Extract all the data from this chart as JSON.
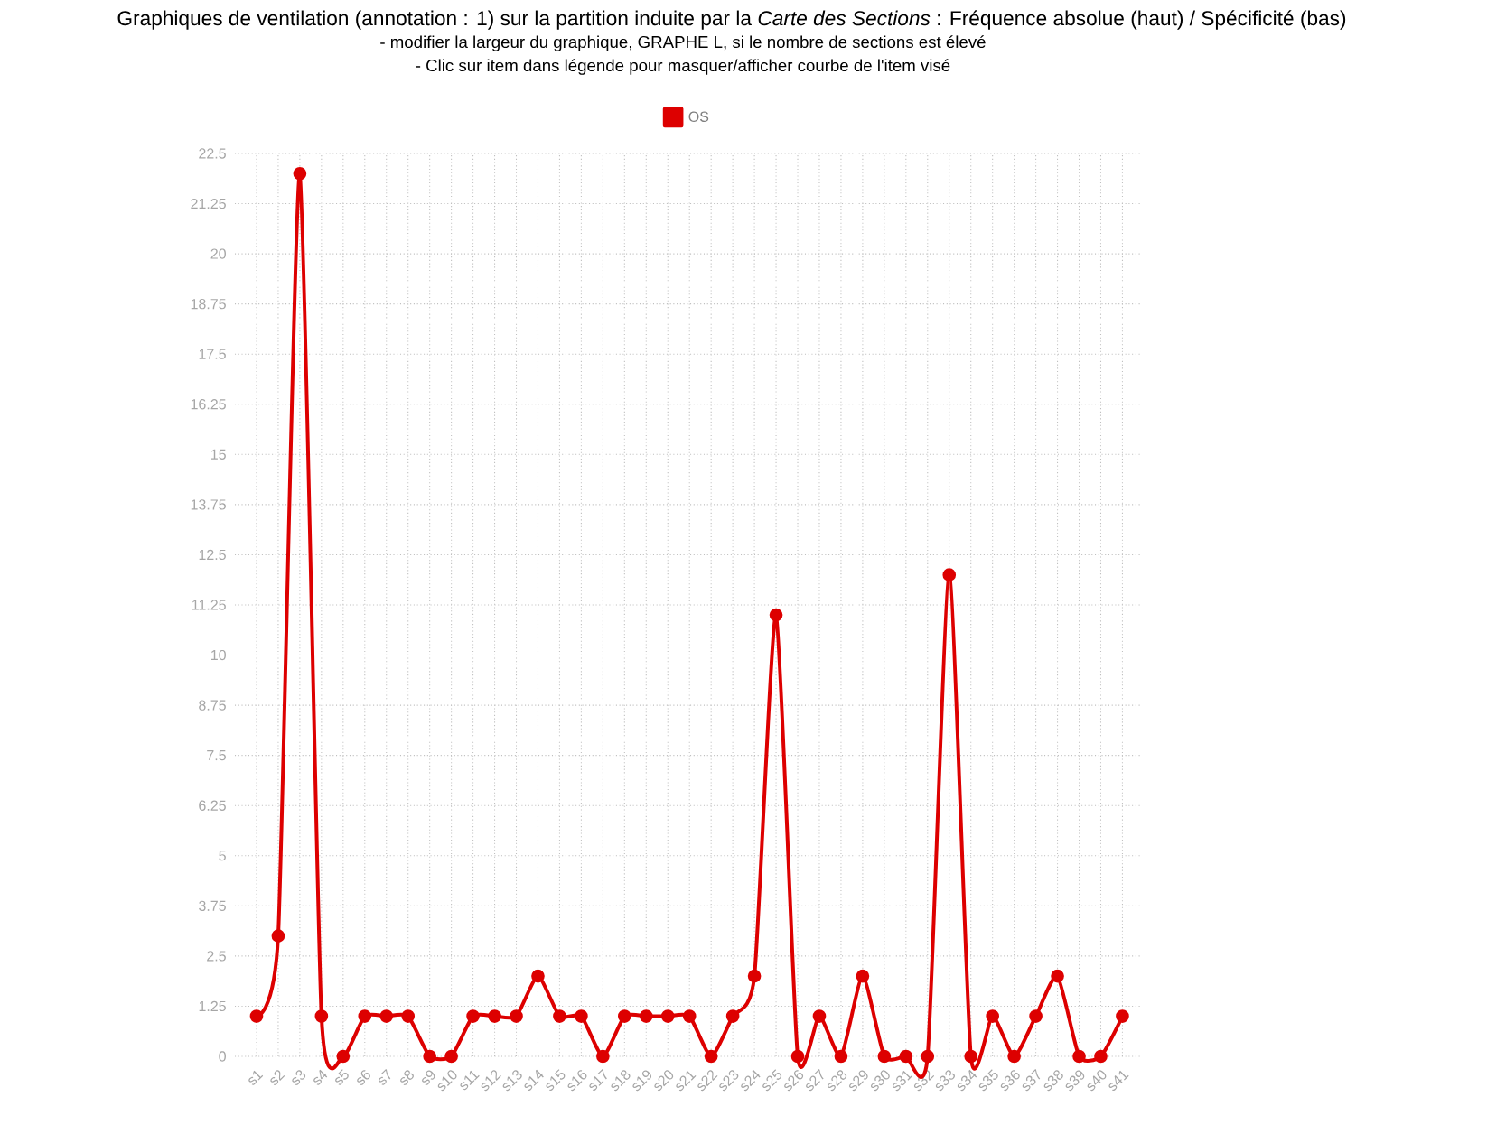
{
  "chart_data": {
    "type": "line",
    "title": "Graphiques de ventilation (annotation : 1) sur la partition induite par la *Carte des Sections* : Fréquence absolue (haut) / Spécificité (bas)",
    "subtitle": "- modifier la largeur du graphique, GRAPHE L, si le nombre de sections est élevé",
    "annotations": [
      "- Clic sur item dans légende pour masquer/afficher courbe de l'item visé"
    ],
    "categories": [
      "s1",
      "s2",
      "s3",
      "s4",
      "s5",
      "s6",
      "s7",
      "s8",
      "s9",
      "s10",
      "s11",
      "s12",
      "s13",
      "s14",
      "s15",
      "s16",
      "s17",
      "s18",
      "s19",
      "s20",
      "s21",
      "s22",
      "s23",
      "s24",
      "s25",
      "s26",
      "s27",
      "s28",
      "s29",
      "s30",
      "s31",
      "s32",
      "s33",
      "s34",
      "s35",
      "s36",
      "s37",
      "s38",
      "s39",
      "s40",
      "s41"
    ],
    "series": [
      {
        "name": "OS",
        "color": "#dd0000",
        "values": [
          1,
          3,
          22,
          1,
          0,
          1,
          1,
          1,
          0,
          0,
          1,
          1,
          1,
          2,
          1,
          1,
          0,
          1,
          1,
          1,
          1,
          0,
          1,
          2,
          11,
          0,
          1,
          0,
          2,
          0,
          0,
          0,
          12,
          0,
          1,
          0,
          1,
          2,
          0,
          0,
          1
        ]
      }
    ],
    "ylim": [
      0,
      22.5
    ],
    "yticks": [
      0,
      1.25,
      2.5,
      3.75,
      5,
      6.25,
      7.5,
      8.75,
      10,
      11.25,
      12.5,
      13.75,
      15,
      16.25,
      17.5,
      18.75,
      20,
      21.25,
      22.5
    ],
    "grid": true,
    "legend": "top",
    "marker": "circle",
    "line_style": "solid"
  }
}
